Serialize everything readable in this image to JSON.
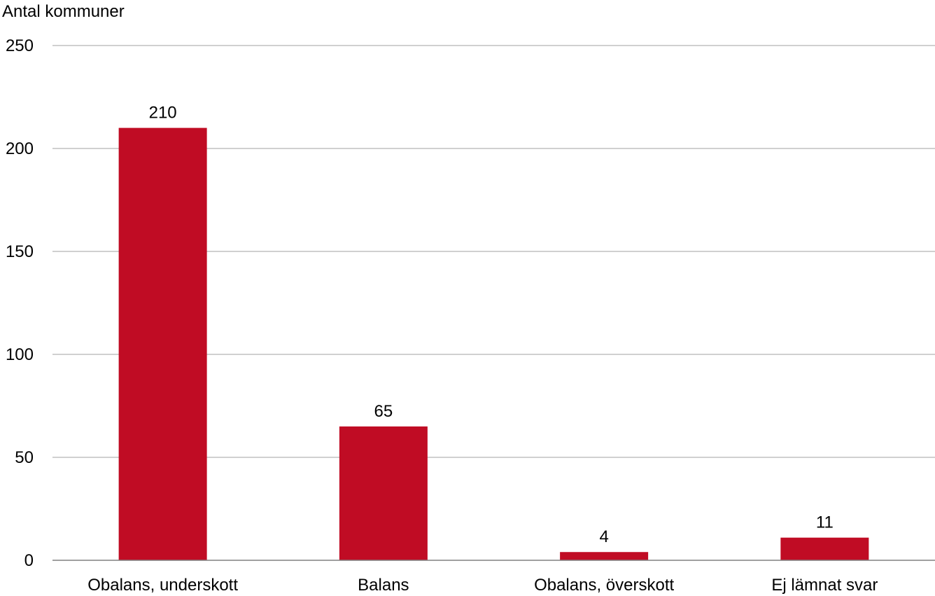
{
  "chart_data": {
    "type": "bar",
    "ylabel": "Antal kommuner",
    "categories": [
      "Obalans, underskott",
      "Balans",
      "Obalans, överskott",
      "Ej lämnat svar"
    ],
    "values": [
      210,
      65,
      4,
      11
    ],
    "data_labels": [
      "210",
      "65",
      "4",
      "11"
    ],
    "ylim": [
      0,
      250
    ],
    "yticks": [
      0,
      50,
      100,
      150,
      200,
      250
    ],
    "ytick_labels": [
      "0",
      "50",
      "100",
      "150",
      "200",
      "250"
    ],
    "grid": true,
    "legend": "none",
    "bar_color": "#c00c24",
    "grid_color": "#b3b3b3",
    "axis_color": "#808080"
  }
}
